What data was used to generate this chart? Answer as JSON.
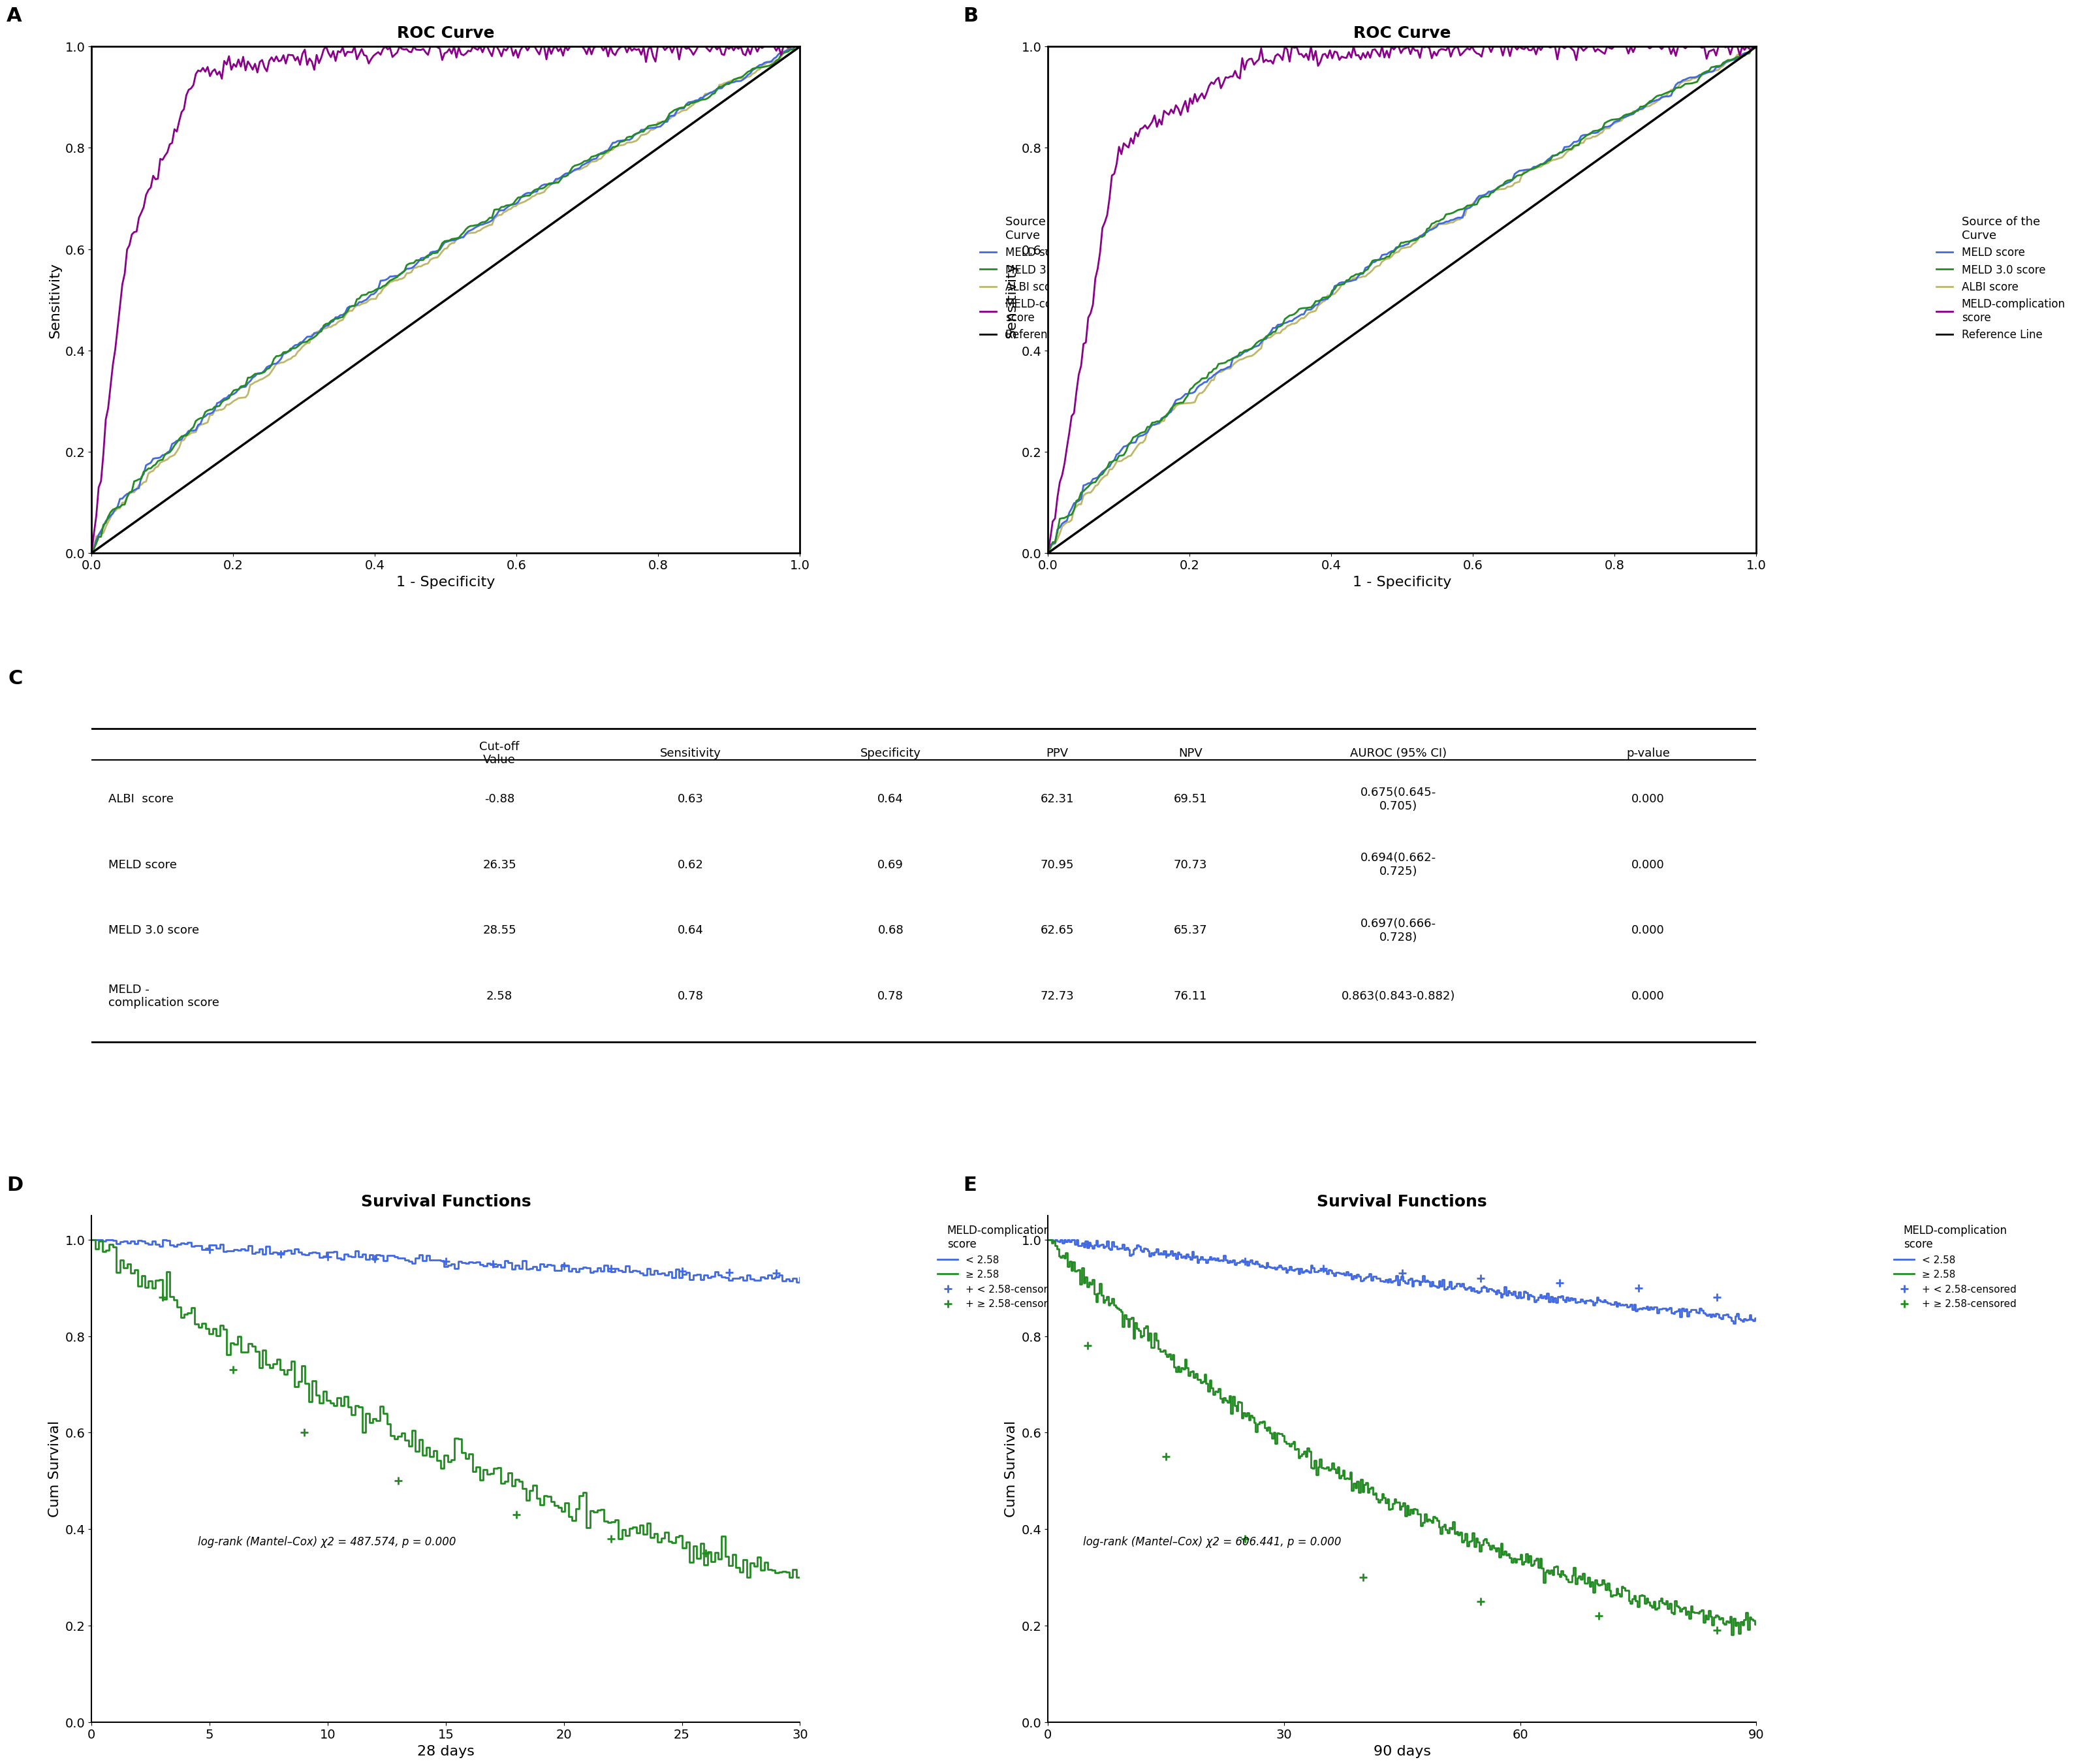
{
  "roc_title": "ROC Curve",
  "roc_xlabel": "1 - Specificity",
  "roc_ylabel": "Sensitivity",
  "legend_title": "Source of the\nCurve",
  "legend_labels": [
    "MELD score",
    "MELD 3.0 score",
    "ALBI score",
    "MELD-complication\nscore",
    "Reference Line"
  ],
  "colors": {
    "MELD": "#4169E1",
    "MELD30": "#228B22",
    "ALBI": "#BDB76B",
    "MELD_comp": "#8B008B",
    "reference": "#000000"
  },
  "table_title": "C",
  "table_headers": [
    "",
    "Cut-off\nValue",
    "Sensitivity",
    "Specificity",
    "PPV",
    "NPV",
    "AUROC (95% CI)",
    "p-value"
  ],
  "table_rows": [
    [
      "ALBI  score",
      "-0.88",
      "0.63",
      "0.64",
      "62.31",
      "69.51",
      "0.675(0.645-\n0.705)",
      "0.000"
    ],
    [
      "MELD score",
      "26.35",
      "0.62",
      "0.69",
      "70.95",
      "70.73",
      "0.694(0.662-\n0.725)",
      "0.000"
    ],
    [
      "MELD 3.0 score",
      "28.55",
      "0.64",
      "0.68",
      "62.65",
      "65.37",
      "0.697(0.666-\n0.728)",
      "0.000"
    ],
    [
      "MELD -\ncomplication score",
      "2.58",
      "0.78",
      "0.78",
      "72.73",
      "76.11",
      "0.863(0.843-0.882)",
      "0.000"
    ]
  ],
  "surv_title": "Survival Functions",
  "surv_ylabel": "Cum Survival",
  "surv_legend_title": "MELD-complication\nscore",
  "surv_legend_labels": [
    "< 2.58",
    "≥ 2.58",
    "+ < 2.58-censored",
    "+ ≥ 2.58-censored"
  ],
  "surv_D_xlabel": "28 days",
  "surv_E_xlabel": "90 days",
  "logrank_D": "log-rank (Mantel–Cox) χ2 = 487.574, p = 0.000",
  "logrank_E": "log-rank (Mantel–Cox) χ2 = 606.441, p = 0.000",
  "panel_labels": [
    "A",
    "B",
    "C",
    "D",
    "E"
  ],
  "surv_colors": {
    "low": "#4169E1",
    "high": "#228B22"
  }
}
